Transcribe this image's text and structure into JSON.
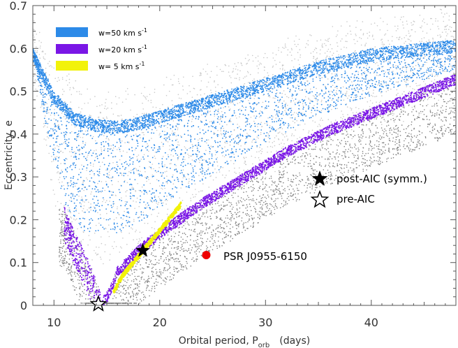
{
  "chart_data": {
    "type": "scatter",
    "xlabel": "Orbital period, P",
    "xlabel_sub": "orb",
    "xlabel_units": "(days)",
    "ylabel": "Eccentricity, e",
    "xlim": [
      8,
      48
    ],
    "ylim": [
      0,
      0.7
    ],
    "x_ticks": [
      10,
      20,
      30,
      40
    ],
    "y_ticks": [
      0,
      0.1,
      0.2,
      0.3,
      0.4,
      0.5,
      0.6,
      0.7
    ],
    "y_tick_labels": [
      "0",
      "0.1",
      "0.2",
      "0.3",
      "0.4",
      "0.5",
      "0.6",
      "0.7"
    ],
    "legend": [
      {
        "label": "w=50 km s",
        "sup": "-1",
        "color": "#2c8ae8"
      },
      {
        "label": "w=20 km s",
        "sup": "-1",
        "color": "#7a16e6"
      },
      {
        "label": "w= 5 km s",
        "sup": "-1",
        "color": "#f2f20a"
      }
    ],
    "series": [
      {
        "name": "w=50 km s-1",
        "color": "#2c8ae8",
        "lower_boundary": [
          [
            8,
            0.6
          ],
          [
            10,
            0.5
          ],
          [
            12,
            0.45
          ],
          [
            14,
            0.435
          ],
          [
            16,
            0.43
          ],
          [
            18,
            0.44
          ],
          [
            22,
            0.47
          ],
          [
            26,
            0.5
          ],
          [
            30,
            0.53
          ],
          [
            35,
            0.57
          ],
          [
            40,
            0.6
          ],
          [
            48,
            0.62
          ]
        ],
        "bottom_envelope": [
          [
            8,
            0.6
          ],
          [
            9,
            0.45
          ],
          [
            10,
            0.33
          ],
          [
            11,
            0.24
          ],
          [
            12,
            0.19
          ],
          [
            13,
            0.17
          ],
          [
            14,
            0.165
          ],
          [
            16,
            0.17
          ],
          [
            18,
            0.19
          ],
          [
            22,
            0.26
          ],
          [
            26,
            0.32
          ],
          [
            30,
            0.38
          ],
          [
            35,
            0.44
          ],
          [
            40,
            0.49
          ],
          [
            48,
            0.55
          ]
        ]
      },
      {
        "name": "w=20 km s-1",
        "color": "#7a16e6",
        "envelope": [
          [
            11,
            0.23
          ],
          [
            12,
            0.17
          ],
          [
            13,
            0.12
          ],
          [
            14,
            0.06
          ],
          [
            14.5,
            0.02
          ],
          [
            15,
            0.03
          ],
          [
            16,
            0.09
          ],
          [
            18,
            0.14
          ],
          [
            20,
            0.18
          ],
          [
            24,
            0.25
          ],
          [
            28,
            0.31
          ],
          [
            32,
            0.37
          ],
          [
            36,
            0.42
          ],
          [
            40,
            0.46
          ],
          [
            44,
            0.5
          ],
          [
            48,
            0.54
          ]
        ]
      },
      {
        "name": "w= 5 km s-1",
        "color": "#f2f20a",
        "curve": [
          [
            15.6,
            0.03
          ],
          [
            16.5,
            0.07
          ],
          [
            17.5,
            0.1
          ],
          [
            18.5,
            0.13
          ],
          [
            19.5,
            0.16
          ],
          [
            20.5,
            0.19
          ],
          [
            21.5,
            0.22
          ],
          [
            22,
            0.235
          ]
        ]
      }
    ],
    "markers": [
      {
        "name": "post-AIC (symm.)",
        "x": 18.4,
        "y": 0.128,
        "symbol": "filled-star",
        "color": "#000000"
      },
      {
        "name": "pre-AIC",
        "x": 14.2,
        "y": 0.003,
        "symbol": "open-star",
        "color": "#000000"
      },
      {
        "name": "PSR J0955-6150",
        "x": 24.4,
        "y": 0.1175,
        "symbol": "circle",
        "color": "#ee0000"
      }
    ],
    "annotations": [
      {
        "text": "post-AIC (symm.)",
        "symbol": "filled-star"
      },
      {
        "text": "pre-AIC",
        "symbol": "open-star"
      },
      {
        "text": "PSR J0955-6150",
        "symbol": "circle"
      }
    ]
  }
}
